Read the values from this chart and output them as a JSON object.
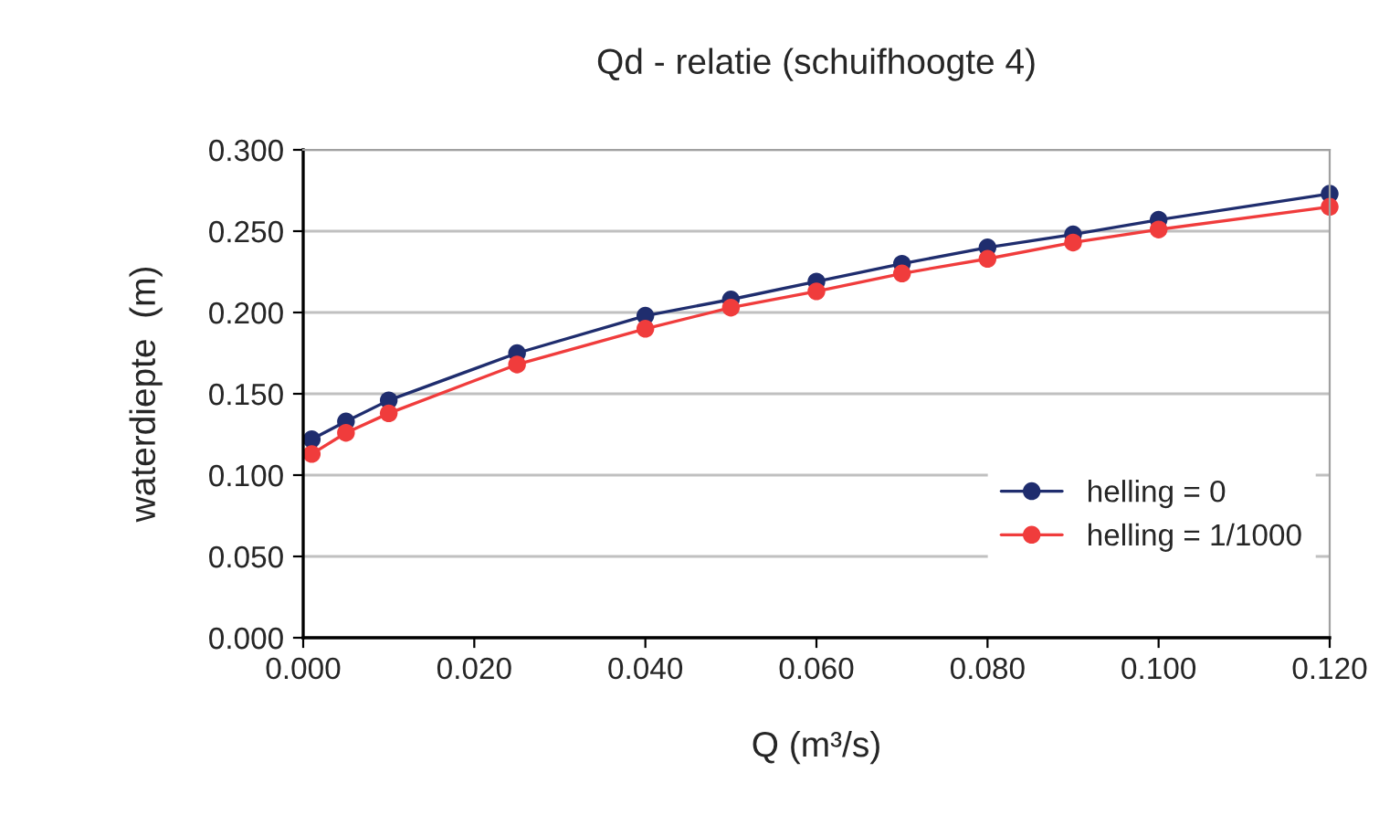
{
  "chart_data": {
    "type": "line",
    "title": "Qd - relatie (schuifhoogte 4)",
    "xlabel": "Q (m³/s)",
    "ylabel": "waterdiepte  (m)",
    "x": [
      0.001,
      0.005,
      0.01,
      0.025,
      0.04,
      0.05,
      0.06,
      0.07,
      0.08,
      0.09,
      0.1,
      0.12
    ],
    "series": [
      {
        "name": "helling = 0",
        "color": "#1f2d6e",
        "values": [
          0.122,
          0.133,
          0.146,
          0.175,
          0.198,
          0.208,
          0.219,
          0.23,
          0.24,
          0.248,
          0.257,
          0.273
        ]
      },
      {
        "name": "helling = 1/1000",
        "color": "#f03c3c",
        "values": [
          0.113,
          0.126,
          0.138,
          0.168,
          0.19,
          0.203,
          0.213,
          0.224,
          0.233,
          0.243,
          0.251,
          0.265
        ]
      }
    ],
    "xlim": [
      0,
      0.12
    ],
    "xticks": [
      {
        "value": 0,
        "label": "0.000"
      },
      {
        "value": 0.02,
        "label": "0.020"
      },
      {
        "value": 0.04,
        "label": "0.040"
      },
      {
        "value": 0.06,
        "label": "0.060"
      },
      {
        "value": 0.08,
        "label": "0.080"
      },
      {
        "value": 0.1,
        "label": "0.100"
      },
      {
        "value": 0.12,
        "label": "0.120"
      }
    ],
    "ylim": [
      0,
      0.3
    ],
    "yticks": [
      {
        "value": 0,
        "label": "0.000"
      },
      {
        "value": 0.05,
        "label": "0.050"
      },
      {
        "value": 0.1,
        "label": "0.100"
      },
      {
        "value": 0.15,
        "label": "0.150"
      },
      {
        "value": 0.2,
        "label": "0.200"
      },
      {
        "value": 0.25,
        "label": "0.250"
      },
      {
        "value": 0.3,
        "label": "0.300"
      }
    ],
    "grid": "y",
    "legend": "bottom right",
    "marker": "circle",
    "line_style": "solid"
  }
}
